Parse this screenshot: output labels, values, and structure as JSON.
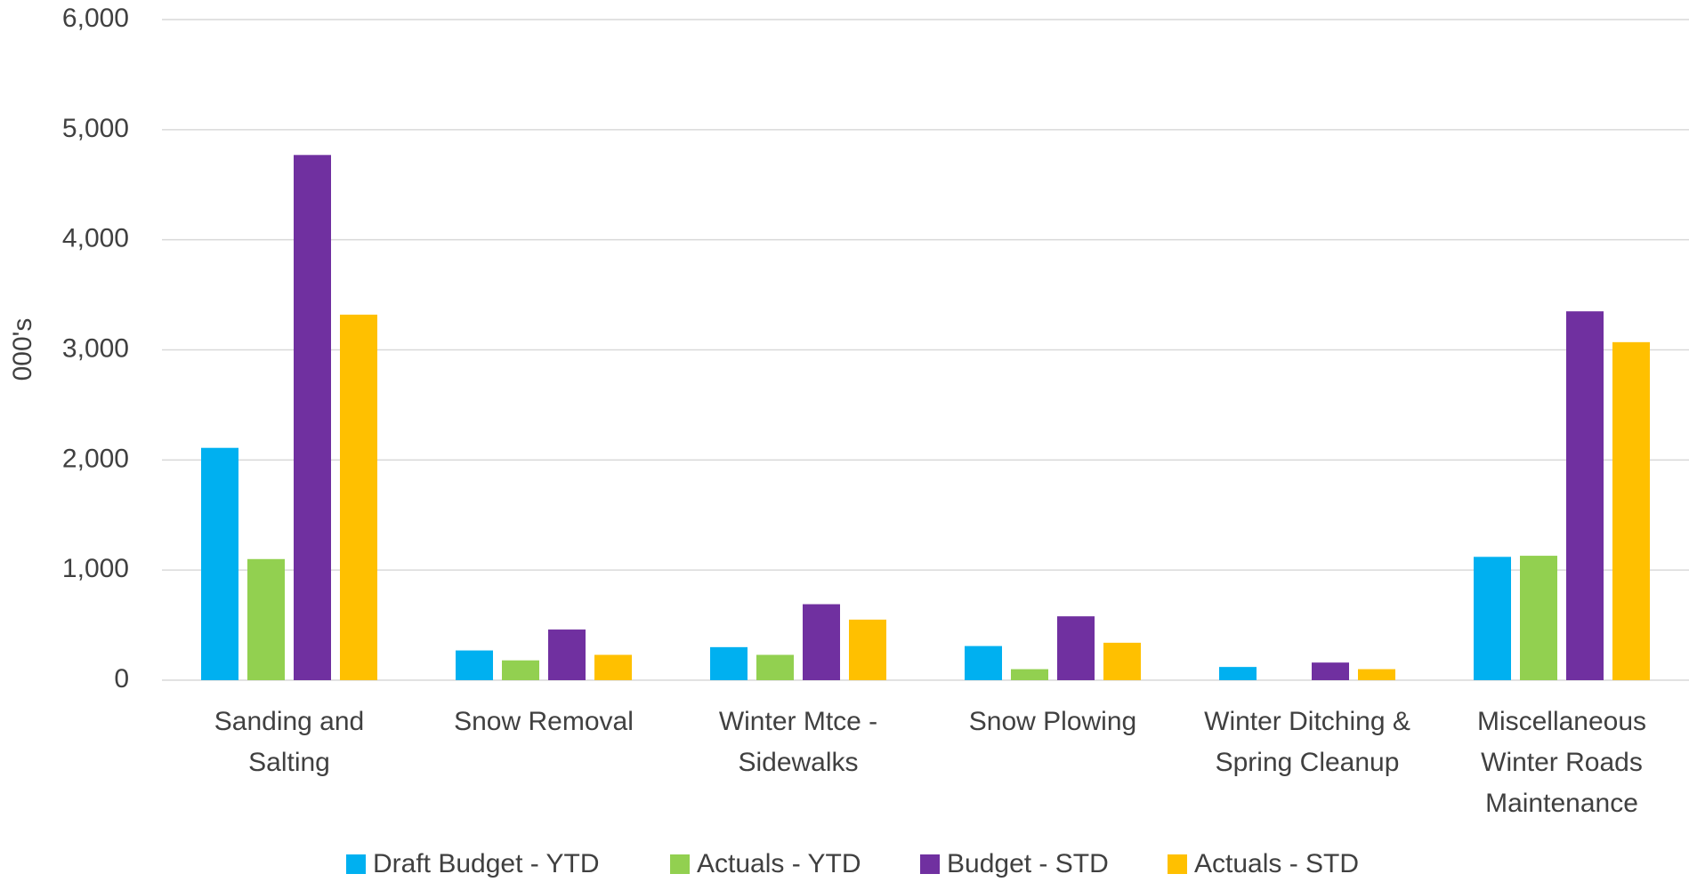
{
  "chart_data": {
    "type": "bar",
    "y_label": "000's",
    "categories": [
      "Sanding and\nSalting",
      "Snow Removal",
      "Winter Mtce -\nSidewalks",
      "Snow Plowing",
      "Winter Ditching &\nSpring Cleanup",
      "Miscellaneous\nWinter Roads\nMaintenance"
    ],
    "series": [
      {
        "name": "Draft Budget - YTD",
        "color": "#00b0f0",
        "values": [
          2110,
          270,
          300,
          310,
          120,
          1120
        ]
      },
      {
        "name": "Actuals - YTD",
        "color": "#92d050",
        "values": [
          1100,
          180,
          230,
          100,
          0,
          1130
        ]
      },
      {
        "name": "Budget - STD",
        "color": "#7030a0",
        "values": [
          4770,
          460,
          690,
          580,
          160,
          3350
        ]
      },
      {
        "name": "Actuals - STD",
        "color": "#ffc000",
        "values": [
          3320,
          230,
          550,
          340,
          100,
          3070
        ]
      }
    ],
    "ylim": [
      0,
      6000
    ],
    "yticks": [
      0,
      {
        "value": 1000,
        "label": "1,000"
      },
      {
        "value": 2000,
        "label": "2,000"
      },
      {
        "value": 3000,
        "label": "3,000"
      },
      {
        "value": 4000,
        "label": "4,000"
      },
      {
        "value": 5000,
        "label": "5,000"
      },
      {
        "value": 6000,
        "label": "6,000"
      }
    ],
    "grid": true,
    "legend": "bottom"
  }
}
